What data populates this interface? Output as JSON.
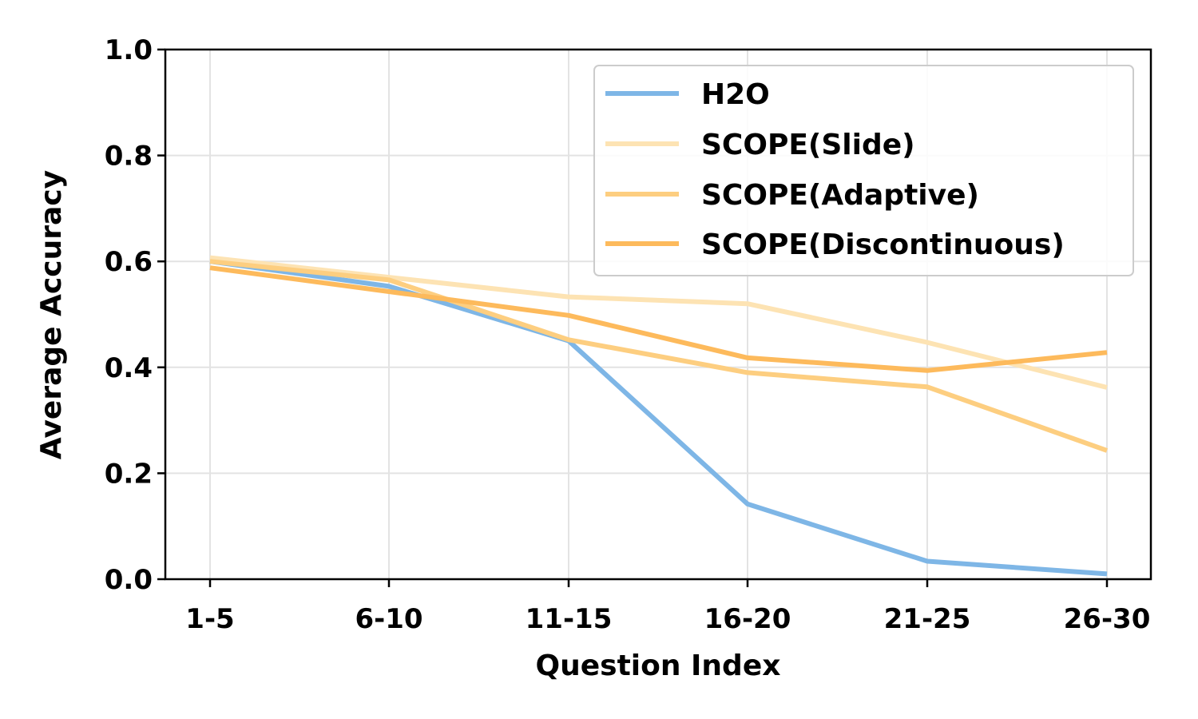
{
  "chart_data": {
    "type": "line",
    "xlabel": "Question Index",
    "ylabel": "Average Accuracy",
    "categories": [
      "1-5",
      "6-10",
      "11-15",
      "16-20",
      "21-25",
      "26-30"
    ],
    "ylim": [
      0,
      1.0
    ],
    "yticks": [
      "0.0",
      "0.2",
      "0.4",
      "0.6",
      "0.8",
      "1.0"
    ],
    "grid": true,
    "legend_position": "top-right",
    "series": [
      {
        "name": "H2O",
        "color": "#7eb6e6",
        "values": [
          0.6,
          0.553,
          0.45,
          0.142,
          0.034,
          0.01
        ]
      },
      {
        "name": "SCOPE(Slide)",
        "color": "#fde3b3",
        "values": [
          0.607,
          0.57,
          0.533,
          0.52,
          0.447,
          0.362
        ]
      },
      {
        "name": "SCOPE(Adaptive)",
        "color": "#fdce80",
        "values": [
          0.6,
          0.565,
          0.452,
          0.39,
          0.363,
          0.243
        ]
      },
      {
        "name": "SCOPE(Discontinuous)",
        "color": "#fdba5c",
        "values": [
          0.588,
          0.543,
          0.498,
          0.418,
          0.394,
          0.428
        ]
      }
    ]
  }
}
